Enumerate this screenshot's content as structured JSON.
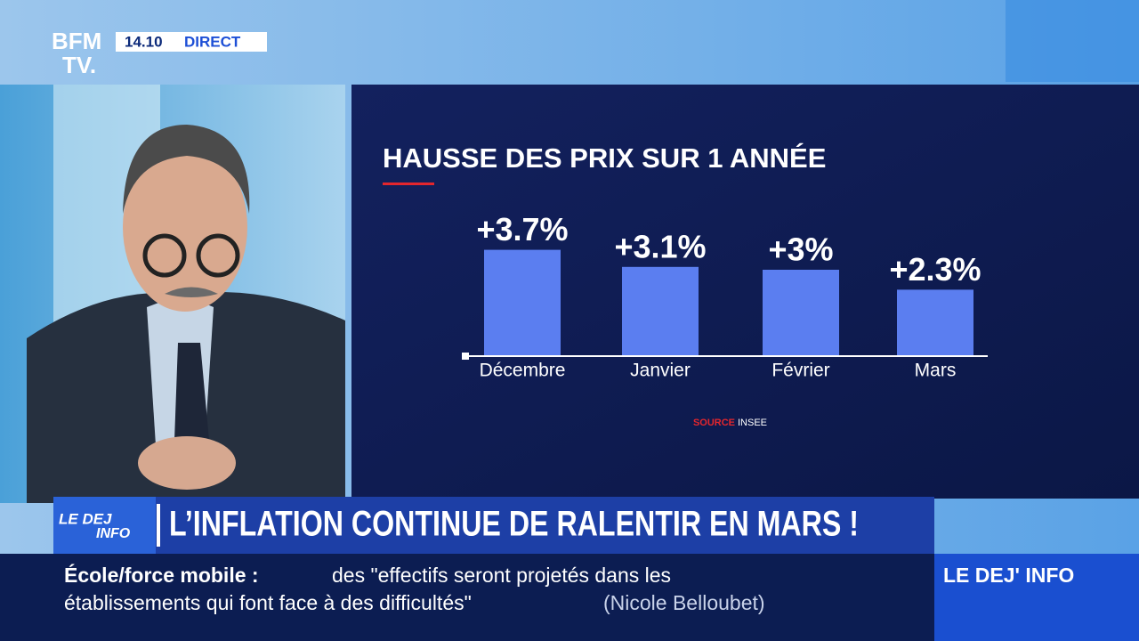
{
  "header": {
    "logo_top": "BFM",
    "logo_bottom": "TV.",
    "time": "14.10",
    "live": "DIRECT"
  },
  "chart_data": {
    "type": "bar",
    "title": "HAUSSE DES PRIX SUR 1 ANNÉE",
    "categories": [
      "Décembre",
      "Janvier",
      "Février",
      "Mars"
    ],
    "values": [
      3.7,
      3.1,
      3,
      2.3
    ],
    "value_labels": [
      "+3.7%",
      "+3.1%",
      "+3%",
      "+2.3%"
    ],
    "color": "#5b7ef0",
    "source_label": "SOURCE",
    "source": "INSEE"
  },
  "banner": {
    "logo_top": "LE DEJ",
    "logo_bottom": "INFO",
    "headline": "L’INFLATION CONTINUE DE RALENTIR EN MARS !"
  },
  "ticker": {
    "topic": "École/force mobile :",
    "quote_line1": "des \"effectifs seront projetés dans les",
    "quote_line2": "établissements qui font face à des difficultés\"",
    "speaker": "(Nicole Belloubet)",
    "program": "LE DEJ' INFO"
  }
}
